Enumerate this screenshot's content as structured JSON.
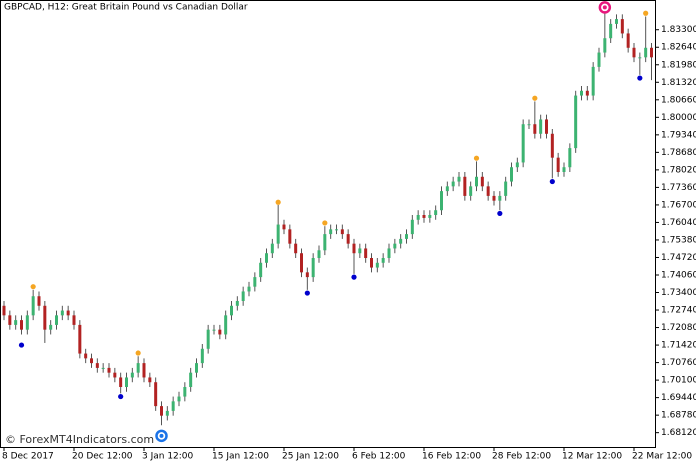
{
  "chart_data": {
    "type": "candlestick",
    "title": "GBPCAD, H12:  Great Britain Pound vs Canadian Dollar",
    "watermark": "© ForexMT4Indicators.com",
    "bull_color": "#3cb371",
    "bear_color": "#b22222",
    "wick_color": "#555555",
    "categories": [
      "8 Dec 2017",
      null,
      null,
      null,
      null,
      null,
      null,
      null,
      null,
      null,
      null,
      null,
      "20 Dec 12:00",
      null,
      null,
      null,
      null,
      null,
      null,
      null,
      null,
      null,
      null,
      null,
      "3 Jan 12:00",
      null,
      null,
      null,
      null,
      null,
      null,
      null,
      null,
      null,
      null,
      null,
      "15 Jan 12:00",
      null,
      null,
      null,
      null,
      null,
      null,
      null,
      null,
      null,
      null,
      null,
      "25 Jan 12:00",
      null,
      null,
      null,
      null,
      null,
      null,
      null,
      null,
      null,
      null,
      null,
      "6 Feb 12:00",
      null,
      null,
      null,
      null,
      null,
      null,
      null,
      null,
      null,
      null,
      null,
      "16 Feb 12:00",
      null,
      null,
      null,
      null,
      null,
      null,
      null,
      null,
      null,
      null,
      null,
      "28 Feb 12:00",
      null,
      null,
      null,
      null,
      null,
      null,
      null,
      null,
      null,
      null,
      null,
      "12 Mar 12:00",
      null,
      null,
      null,
      null,
      null,
      null,
      null,
      null,
      null,
      null,
      null,
      "22 Mar 12:00",
      null,
      null,
      null
    ],
    "open": [
      1.729,
      1.7254,
      1.7218,
      1.7236,
      1.72,
      1.7254,
      1.7326,
      1.729,
      1.72,
      1.7218,
      1.7254,
      1.7272,
      1.7254,
      1.7218,
      1.711,
      1.7092,
      1.7074,
      1.7056,
      1.7056,
      1.7038,
      1.702,
      1.6984,
      1.702,
      1.7038,
      1.7074,
      1.702,
      1.7002,
      1.6912,
      1.6876,
      1.6894,
      1.693,
      1.6948,
      1.6984,
      1.7038,
      1.7074,
      1.7128,
      1.72,
      1.72,
      1.7182,
      1.7254,
      1.729,
      1.7308,
      1.7344,
      1.7362,
      1.7398,
      1.7452,
      1.7488,
      1.7524,
      1.7596,
      1.7578,
      1.7524,
      1.7488,
      1.7416,
      1.7398,
      1.747,
      1.7499,
      1.756,
      1.7578,
      1.7578,
      1.756,
      1.7524,
      1.7488,
      1.7506,
      1.747,
      1.7434,
      1.7452,
      1.747,
      1.7506,
      1.7524,
      1.7542,
      1.756,
      1.7614,
      1.7632,
      1.7621,
      1.7632,
      1.765,
      1.7722,
      1.774,
      1.7758,
      1.7776,
      1.7704,
      1.774,
      1.7776,
      1.774,
      1.7704,
      1.7686,
      1.7704,
      1.7758,
      1.7812,
      1.783,
      1.7974,
      1.7974,
      1.7938,
      1.7992,
      1.7938,
      1.7848,
      1.7794,
      1.7812,
      1.7884,
      1.8082,
      1.81,
      1.8082,
      1.819,
      1.8244,
      1.8298,
      1.8352,
      1.837,
      1.8316,
      1.8262,
      1.8226,
      1.8226,
      1.8262
    ],
    "high": [
      1.7308,
      1.7272,
      1.7254,
      1.7254,
      1.7272,
      1.735,
      1.7344,
      1.7308,
      1.7236,
      1.7272,
      1.729,
      1.729,
      1.7272,
      1.7236,
      1.7128,
      1.711,
      1.7092,
      1.7074,
      1.7074,
      1.7056,
      1.7038,
      1.7038,
      1.7056,
      1.71,
      1.7092,
      1.7038,
      1.702,
      1.693,
      1.6912,
      1.6948,
      1.6966,
      1.7002,
      1.7056,
      1.7092,
      1.7146,
      1.7218,
      1.7218,
      1.7218,
      1.7272,
      1.7308,
      1.7326,
      1.7362,
      1.738,
      1.7416,
      1.747,
      1.7506,
      1.7542,
      1.767,
      1.7614,
      1.7596,
      1.7542,
      1.7506,
      1.7434,
      1.7488,
      1.7517,
      1.759,
      1.7596,
      1.7596,
      1.7596,
      1.7578,
      1.7542,
      1.7524,
      1.7524,
      1.7488,
      1.747,
      1.7488,
      1.7524,
      1.7542,
      1.756,
      1.7578,
      1.7632,
      1.765,
      1.765,
      1.765,
      1.7668,
      1.774,
      1.7758,
      1.7776,
      1.7794,
      1.7794,
      1.7758,
      1.7834,
      1.7794,
      1.7758,
      1.7722,
      1.7722,
      1.7776,
      1.783,
      1.7848,
      1.7992,
      1.7992,
      1.806,
      1.801,
      1.801,
      1.7956,
      1.7866,
      1.783,
      1.7902,
      1.81,
      1.8118,
      1.8118,
      1.8208,
      1.8262,
      1.84,
      1.837,
      1.8388,
      1.8388,
      1.8334,
      1.828,
      1.8244,
      1.838,
      1.828
    ],
    "low": [
      1.7236,
      1.72,
      1.72,
      1.7182,
      1.7182,
      1.7236,
      1.7272,
      1.715,
      1.7182,
      1.72,
      1.7236,
      1.7236,
      1.72,
      1.7092,
      1.7074,
      1.7056,
      1.7038,
      1.7038,
      1.702,
      1.7002,
      1.696,
      1.6966,
      1.7002,
      1.702,
      1.7002,
      1.6984,
      1.6894,
      1.684,
      1.6858,
      1.6876,
      1.6912,
      1.693,
      1.6966,
      1.702,
      1.7056,
      1.711,
      1.7182,
      1.7164,
      1.7164,
      1.7236,
      1.7272,
      1.729,
      1.7326,
      1.7344,
      1.738,
      1.7434,
      1.747,
      1.7506,
      1.756,
      1.7506,
      1.747,
      1.7398,
      1.735,
      1.738,
      1.7452,
      1.7481,
      1.7542,
      1.756,
      1.7542,
      1.7506,
      1.741,
      1.747,
      1.7452,
      1.7416,
      1.7416,
      1.7434,
      1.7452,
      1.7488,
      1.7506,
      1.7524,
      1.7542,
      1.7596,
      1.7603,
      1.7603,
      1.7614,
      1.7632,
      1.7704,
      1.7722,
      1.774,
      1.7686,
      1.7686,
      1.7722,
      1.7722,
      1.7686,
      1.7668,
      1.765,
      1.7686,
      1.774,
      1.7794,
      1.7812,
      1.7956,
      1.792,
      1.792,
      1.792,
      1.777,
      1.7776,
      1.7776,
      1.7794,
      1.7866,
      1.8064,
      1.8064,
      1.8064,
      1.8172,
      1.8226,
      1.828,
      1.8334,
      1.8298,
      1.8244,
      1.8208,
      1.816,
      1.8208,
      1.814
    ],
    "close": [
      1.7254,
      1.7218,
      1.7236,
      1.72,
      1.7254,
      1.7326,
      1.729,
      1.72,
      1.7218,
      1.7254,
      1.7272,
      1.7254,
      1.7218,
      1.711,
      1.7092,
      1.7074,
      1.7056,
      1.7056,
      1.7038,
      1.702,
      1.6984,
      1.702,
      1.7038,
      1.7074,
      1.702,
      1.7002,
      1.6912,
      1.6876,
      1.6894,
      1.693,
      1.6948,
      1.6984,
      1.7038,
      1.7074,
      1.7128,
      1.72,
      1.72,
      1.7182,
      1.7254,
      1.729,
      1.7308,
      1.7344,
      1.7362,
      1.7398,
      1.7452,
      1.7488,
      1.7524,
      1.7596,
      1.7578,
      1.7524,
      1.7488,
      1.7416,
      1.7398,
      1.747,
      1.7499,
      1.756,
      1.7578,
      1.7578,
      1.756,
      1.7524,
      1.7488,
      1.7506,
      1.747,
      1.7434,
      1.7452,
      1.747,
      1.7506,
      1.7524,
      1.7542,
      1.756,
      1.7614,
      1.7632,
      1.7621,
      1.7632,
      1.765,
      1.7722,
      1.774,
      1.7758,
      1.7776,
      1.7704,
      1.774,
      1.7776,
      1.774,
      1.7704,
      1.7686,
      1.7704,
      1.7758,
      1.7812,
      1.783,
      1.7974,
      1.7974,
      1.7938,
      1.7992,
      1.7938,
      1.7848,
      1.7794,
      1.7812,
      1.7884,
      1.8082,
      1.81,
      1.8082,
      1.819,
      1.8244,
      1.8298,
      1.8352,
      1.837,
      1.8316,
      1.8262,
      1.8226,
      1.8226,
      1.8262,
      1.8226
    ],
    "signals": [
      {
        "color": "#f5a623",
        "points": [
          [
            5,
            1.7362
          ],
          [
            23,
            1.7112
          ],
          [
            47,
            1.768
          ],
          [
            55,
            1.7602
          ],
          [
            81,
            1.7846
          ],
          [
            91,
            1.8072
          ],
          [
            110,
            1.8392
          ]
        ]
      },
      {
        "color": "#0000cc",
        "points": [
          [
            3,
            1.7142
          ],
          [
            20,
            1.6948
          ],
          [
            52,
            1.7338
          ],
          [
            60,
            1.7398
          ],
          [
            85,
            1.7638
          ],
          [
            94,
            1.7758
          ],
          [
            109,
            1.8148
          ]
        ]
      }
    ],
    "rings": [
      {
        "color": "#e8177d",
        "point": [
          103,
          1.8414
        ]
      },
      {
        "color": "#1a73e8",
        "point": [
          27,
          1.68
        ]
      }
    ],
    "ylim": [
      1.6758,
      1.8442
    ],
    "yticks": [
      {
        "value": 1.833,
        "label": "1.83300"
      },
      {
        "value": 1.8264,
        "label": "1.82640"
      },
      {
        "value": 1.8198,
        "label": "1.81980"
      },
      {
        "value": 1.8132,
        "label": "1.81320"
      },
      {
        "value": 1.8066,
        "label": "1.80660"
      },
      {
        "value": 1.8,
        "label": "1.80000"
      },
      {
        "value": 1.7934,
        "label": "1.79340"
      },
      {
        "value": 1.7868,
        "label": "1.78680"
      },
      {
        "value": 1.7802,
        "label": "1.78020"
      },
      {
        "value": 1.7736,
        "label": "1.77360"
      },
      {
        "value": 1.767,
        "label": "1.76700"
      },
      {
        "value": 1.7604,
        "label": "1.76040"
      },
      {
        "value": 1.7538,
        "label": "1.75380"
      },
      {
        "value": 1.7472,
        "label": "1.74720"
      },
      {
        "value": 1.7406,
        "label": "1.74060"
      },
      {
        "value": 1.734,
        "label": "1.73400"
      },
      {
        "value": 1.7274,
        "label": "1.72740"
      },
      {
        "value": 1.7208,
        "label": "1.72080"
      },
      {
        "value": 1.7142,
        "label": "1.71420"
      },
      {
        "value": 1.7076,
        "label": "1.70760"
      },
      {
        "value": 1.701,
        "label": "1.70100"
      },
      {
        "value": 1.6944,
        "label": "1.69440"
      },
      {
        "value": 1.6878,
        "label": "1.68780"
      },
      {
        "value": 1.6812,
        "label": "1.68120"
      }
    ],
    "grid": false
  }
}
